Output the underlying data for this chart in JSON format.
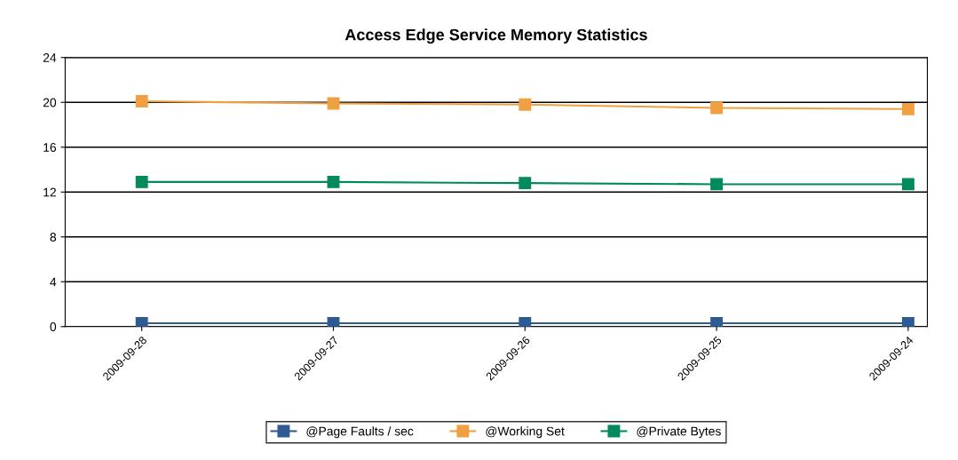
{
  "chart_data": {
    "type": "line",
    "title": "Access Edge Service Memory Statistics",
    "categories": [
      "2009-09-28",
      "2009-09-27",
      "2009-09-26",
      "2009-09-25",
      "2009-09-24"
    ],
    "series": [
      {
        "name": "@Page Faults / sec",
        "color": "#2e5b94",
        "values": [
          0.3,
          0.3,
          0.3,
          0.3,
          0.3
        ]
      },
      {
        "name": "@Working Set",
        "color": "#f0a040",
        "values": [
          20.1,
          19.9,
          19.8,
          19.5,
          19.4
        ]
      },
      {
        "name": "@Private Bytes",
        "color": "#008a5e",
        "values": [
          12.9,
          12.9,
          12.8,
          12.7,
          12.7
        ]
      }
    ],
    "ylim": [
      0,
      24
    ],
    "yticks": [
      0,
      4,
      8,
      12,
      16,
      20,
      24
    ],
    "grid": "y",
    "legend": "bottom",
    "marker": "square",
    "line_style": "solid"
  }
}
